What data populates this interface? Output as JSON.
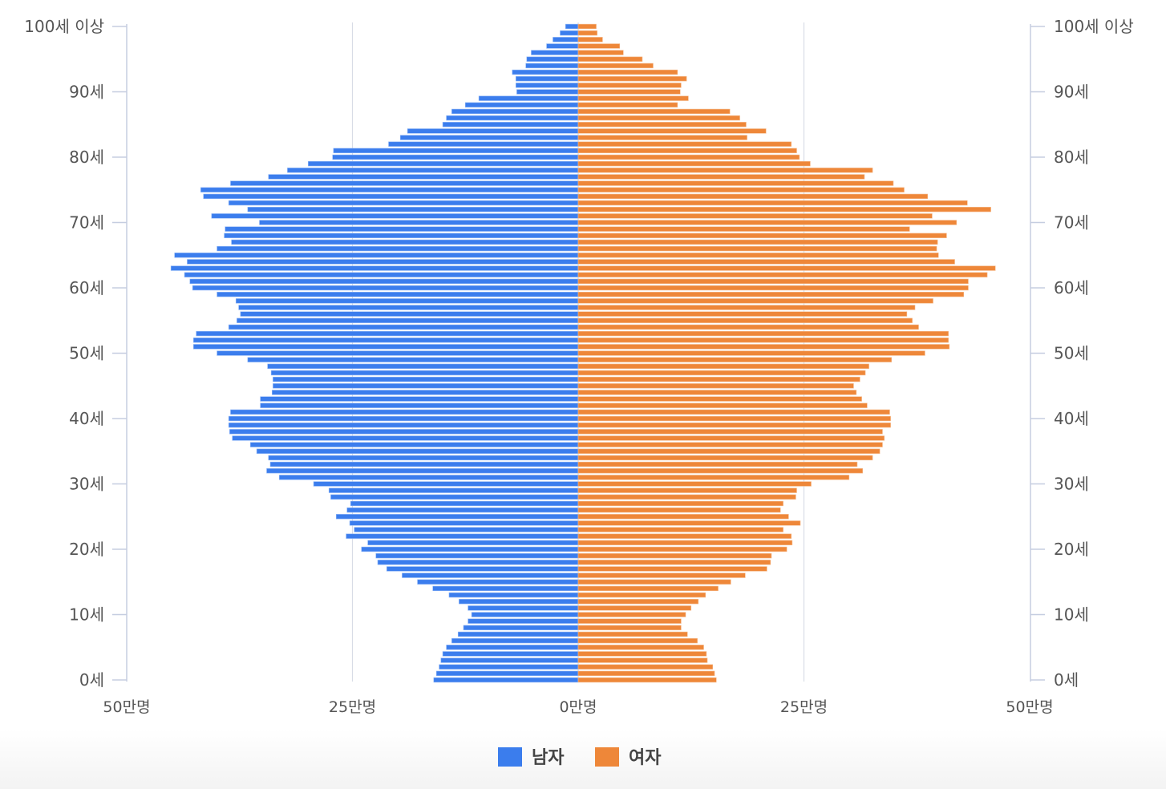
{
  "chart_data": {
    "type": "bar",
    "orientation": "horizontal-population-pyramid",
    "units": "명",
    "xlim": [
      -500000,
      500000
    ],
    "x_ticks": [
      {
        "value": -500000,
        "label": "50만명"
      },
      {
        "value": -250000,
        "label": "25만명"
      },
      {
        "value": 0,
        "label": "0만명"
      },
      {
        "value": 250000,
        "label": "25만명"
      },
      {
        "value": 500000,
        "label": "50만명"
      }
    ],
    "y_ticks": [
      {
        "age": 0,
        "label": "0세"
      },
      {
        "age": 10,
        "label": "10세"
      },
      {
        "age": 20,
        "label": "20세"
      },
      {
        "age": 30,
        "label": "30세"
      },
      {
        "age": 40,
        "label": "40세"
      },
      {
        "age": 50,
        "label": "50세"
      },
      {
        "age": 60,
        "label": "60세"
      },
      {
        "age": 70,
        "label": "70세"
      },
      {
        "age": 80,
        "label": "80세"
      },
      {
        "age": 90,
        "label": "90세"
      },
      {
        "age": 100,
        "label": "100세 이상"
      }
    ],
    "ages": [
      0,
      1,
      2,
      3,
      4,
      5,
      6,
      7,
      8,
      9,
      10,
      11,
      12,
      13,
      14,
      15,
      16,
      17,
      18,
      19,
      20,
      21,
      22,
      23,
      24,
      25,
      26,
      27,
      28,
      29,
      30,
      31,
      32,
      33,
      34,
      35,
      36,
      37,
      38,
      39,
      40,
      41,
      42,
      43,
      44,
      45,
      46,
      47,
      48,
      49,
      50,
      51,
      52,
      53,
      54,
      55,
      56,
      57,
      58,
      59,
      60,
      61,
      62,
      63,
      64,
      65,
      66,
      67,
      68,
      69,
      70,
      71,
      72,
      73,
      74,
      75,
      76,
      77,
      78,
      79,
      80,
      81,
      82,
      83,
      84,
      85,
      86,
      87,
      88,
      89,
      90,
      91,
      92,
      93,
      94,
      95,
      96,
      97,
      98,
      99,
      100
    ],
    "series": [
      {
        "name": "남자",
        "color": "#3b7ded",
        "values": [
          160000,
          157000,
          154000,
          152000,
          150000,
          146000,
          140000,
          133000,
          127000,
          122000,
          118000,
          122000,
          132000,
          143000,
          161000,
          178000,
          195000,
          212000,
          222000,
          224000,
          240000,
          233000,
          257000,
          248000,
          253000,
          268000,
          256000,
          252000,
          274000,
          276000,
          293000,
          331000,
          345000,
          341000,
          343000,
          356000,
          363000,
          383000,
          386000,
          387000,
          387000,
          385000,
          352000,
          352000,
          339000,
          338000,
          338000,
          340000,
          344000,
          366000,
          400000,
          426000,
          426000,
          423000,
          387000,
          378000,
          374000,
          376000,
          379000,
          400000,
          427000,
          430000,
          436000,
          451000,
          433000,
          447000,
          400000,
          384000,
          392000,
          391000,
          353000,
          406000,
          366000,
          387000,
          415000,
          418000,
          385000,
          343000,
          322000,
          299000,
          272000,
          271000,
          210000,
          197000,
          189000,
          150000,
          146000,
          140000,
          125000,
          110000,
          68000,
          69000,
          69000,
          73000,
          58000,
          57000,
          52000,
          35000,
          28000,
          20000,
          14000
        ]
      },
      {
        "name": "여자",
        "color": "#ee8739",
        "values": [
          153000,
          151000,
          149000,
          143000,
          142000,
          139000,
          132000,
          121000,
          114000,
          114000,
          119000,
          125000,
          133000,
          141000,
          155000,
          169000,
          185000,
          209000,
          213000,
          214000,
          231000,
          237000,
          236000,
          227000,
          246000,
          233000,
          224000,
          227000,
          241000,
          242000,
          258000,
          300000,
          315000,
          309000,
          326000,
          334000,
          337000,
          339000,
          337000,
          346000,
          346000,
          345000,
          320000,
          314000,
          308000,
          305000,
          312000,
          318000,
          322000,
          347000,
          384000,
          411000,
          410000,
          410000,
          377000,
          370000,
          364000,
          373000,
          393000,
          427000,
          432000,
          432000,
          453000,
          462000,
          417000,
          399000,
          397000,
          398000,
          408000,
          367000,
          419000,
          392000,
          457000,
          431000,
          387000,
          361000,
          349000,
          317000,
          326000,
          257000,
          245000,
          242000,
          236000,
          187000,
          208000,
          186000,
          179000,
          168000,
          110000,
          122000,
          113000,
          114000,
          120000,
          110000,
          83000,
          71000,
          50000,
          46000,
          27000,
          21000,
          20000
        ]
      }
    ],
    "legend": {
      "position": "bottom-center"
    },
    "grid": {
      "vertical": true,
      "horizontal": false
    }
  }
}
